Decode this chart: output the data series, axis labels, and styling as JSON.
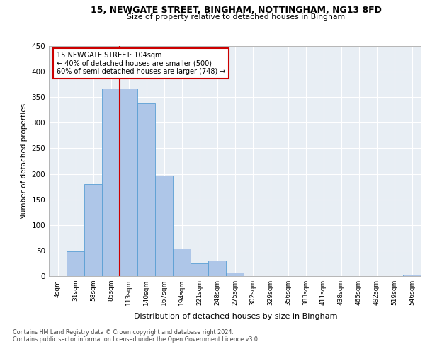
{
  "title1": "15, NEWGATE STREET, BINGHAM, NOTTINGHAM, NG13 8FD",
  "title2": "Size of property relative to detached houses in Bingham",
  "xlabel": "Distribution of detached houses by size in Bingham",
  "ylabel": "Number of detached properties",
  "footnote1": "Contains HM Land Registry data © Crown copyright and database right 2024.",
  "footnote2": "Contains public sector information licensed under the Open Government Licence v3.0.",
  "bin_labels": [
    "4sqm",
    "31sqm",
    "58sqm",
    "85sqm",
    "113sqm",
    "140sqm",
    "167sqm",
    "194sqm",
    "221sqm",
    "248sqm",
    "275sqm",
    "302sqm",
    "329sqm",
    "356sqm",
    "383sqm",
    "411sqm",
    "438sqm",
    "465sqm",
    "492sqm",
    "519sqm",
    "546sqm"
  ],
  "bar_values": [
    0,
    49,
    180,
    367,
    367,
    338,
    197,
    54,
    25,
    30,
    7,
    0,
    0,
    0,
    0,
    0,
    0,
    0,
    0,
    0,
    3
  ],
  "bar_color": "#aec6e8",
  "bar_edge_color": "#5a9fd4",
  "background_color": "#e8eef4",
  "grid_color": "#ffffff",
  "marker_line_color": "#cc0000",
  "annotation_line1": "15 NEWGATE STREET: 104sqm",
  "annotation_line2": "← 40% of detached houses are smaller (500)",
  "annotation_line3": "60% of semi-detached houses are larger (748) →",
  "annotation_box_color": "#ffffff",
  "annotation_box_edge": "#cc0000",
  "ylim": [
    0,
    450
  ],
  "yticks": [
    0,
    50,
    100,
    150,
    200,
    250,
    300,
    350,
    400,
    450
  ]
}
